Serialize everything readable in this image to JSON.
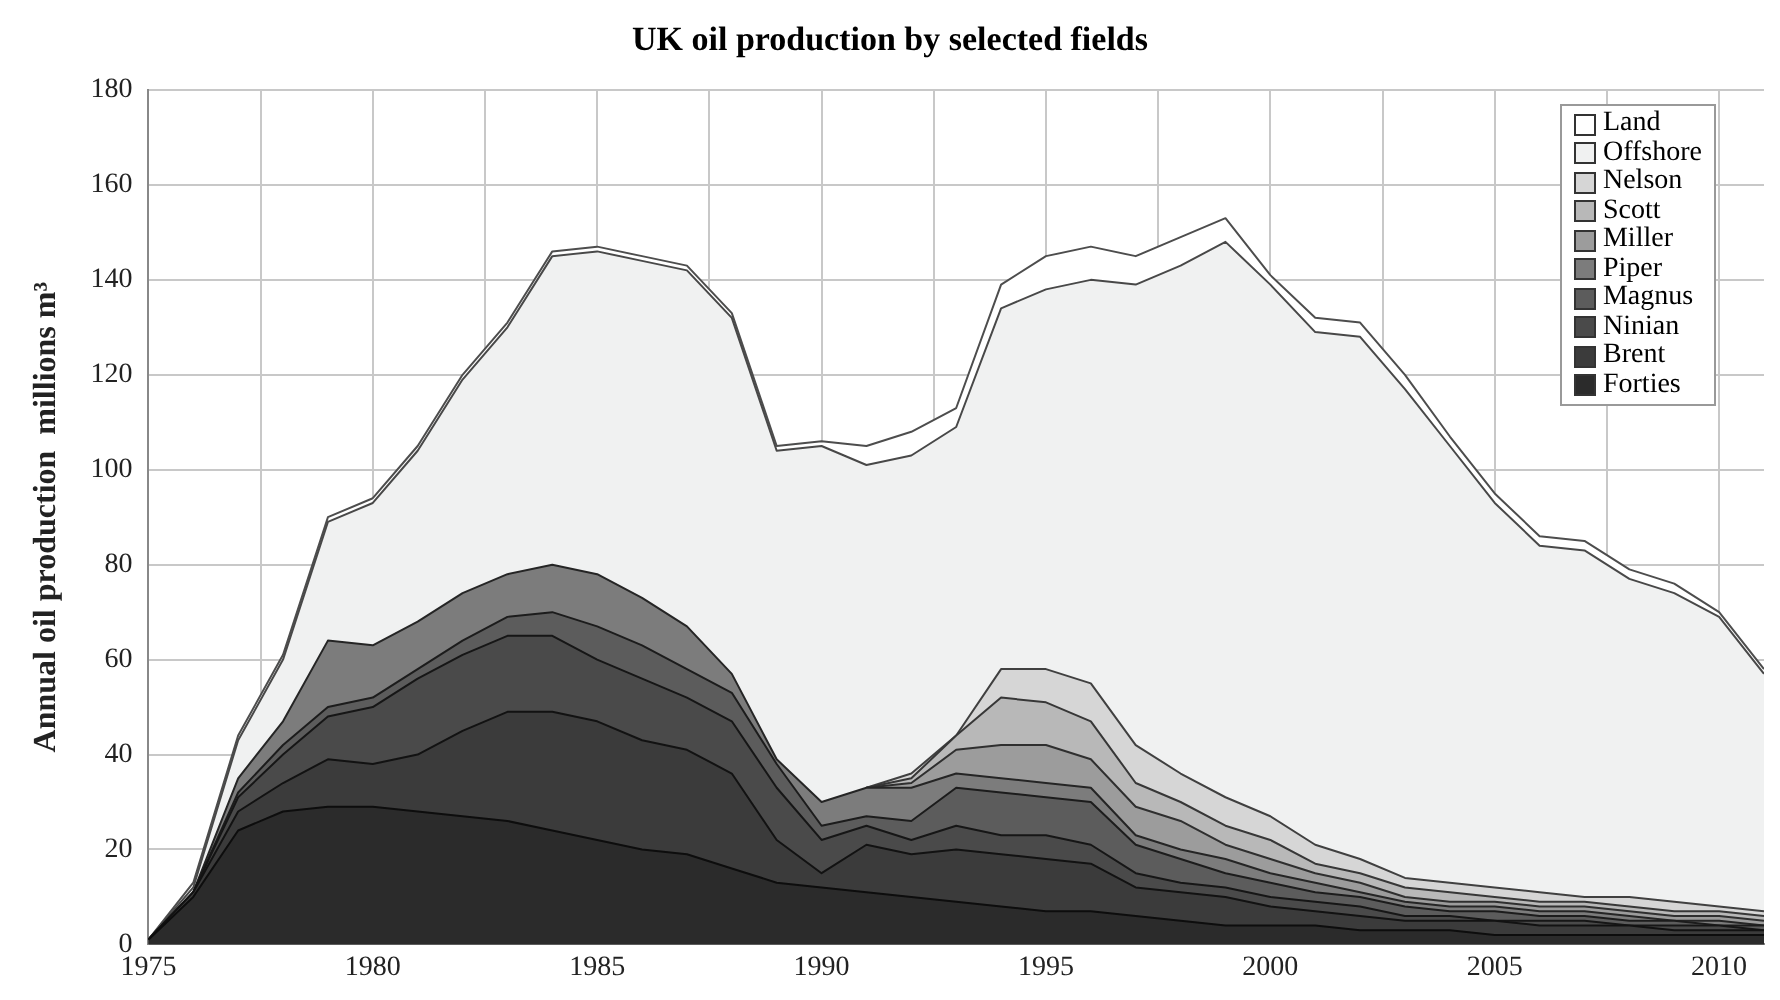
{
  "chart_data": {
    "type": "area",
    "stacked": true,
    "title": "UK oil production by selected fields",
    "ylabel": "Annual oil production  millions m³",
    "x": [
      1975,
      1976,
      1977,
      1978,
      1979,
      1980,
      1981,
      1982,
      1983,
      1984,
      1985,
      1986,
      1987,
      1988,
      1989,
      1990,
      1991,
      1992,
      1993,
      1994,
      1995,
      1996,
      1997,
      1998,
      1999,
      2000,
      2001,
      2002,
      2003,
      2004,
      2005,
      2006,
      2007,
      2008,
      2009,
      2010,
      2011
    ],
    "series": [
      {
        "name": "Forties",
        "color": "#2b2b2b",
        "values": [
          1,
          10,
          24,
          28,
          29,
          29,
          28,
          27,
          26,
          24,
          22,
          20,
          19,
          16,
          13,
          12,
          11,
          10,
          9,
          8,
          7,
          7,
          6,
          5,
          4,
          4,
          4,
          3,
          3,
          3,
          2,
          2,
          2,
          2,
          2,
          2,
          2
        ]
      },
      {
        "name": "Brent",
        "color": "#3b3b3b",
        "values": [
          0,
          1,
          4,
          6,
          10,
          9,
          12,
          18,
          23,
          25,
          25,
          23,
          22,
          20,
          9,
          3,
          10,
          9,
          11,
          11,
          11,
          10,
          6,
          6,
          6,
          4,
          3,
          3,
          2,
          2,
          3,
          2,
          2,
          2,
          1,
          1,
          1
        ]
      },
      {
        "name": "Ninian",
        "color": "#4a4a4a",
        "values": [
          0,
          0,
          3,
          6,
          9,
          12,
          16,
          16,
          16,
          16,
          13,
          13,
          11,
          11,
          11,
          7,
          4,
          3,
          5,
          4,
          5,
          4,
          3,
          2,
          2,
          2,
          2,
          2,
          1,
          1,
          0,
          1,
          1,
          0,
          1,
          1,
          0
        ]
      },
      {
        "name": "Magnus",
        "color": "#5c5c5c",
        "values": [
          0,
          0,
          1,
          2,
          2,
          2,
          2,
          3,
          4,
          5,
          7,
          7,
          6,
          6,
          5,
          3,
          2,
          4,
          8,
          9,
          8,
          9,
          6,
          5,
          3,
          3,
          2,
          2,
          2,
          1,
          2,
          1,
          1,
          1,
          1,
          0,
          1
        ]
      },
      {
        "name": "Piper",
        "color": "#7c7c7c",
        "values": [
          0,
          0,
          3,
          5,
          14,
          11,
          10,
          10,
          9,
          10,
          11,
          10,
          9,
          4,
          1,
          5,
          6,
          7,
          3,
          3,
          3,
          3,
          2,
          2,
          3,
          2,
          2,
          1,
          1,
          1,
          1,
          1,
          1,
          1,
          0,
          1,
          0
        ]
      },
      {
        "name": "Miller",
        "color": "#9c9c9c",
        "values": [
          null,
          null,
          null,
          null,
          null,
          null,
          null,
          null,
          null,
          null,
          null,
          null,
          null,
          null,
          null,
          null,
          0,
          1,
          5,
          7,
          8,
          6,
          6,
          6,
          3,
          3,
          2,
          2,
          1,
          1,
          1,
          1,
          1,
          1,
          1,
          1,
          1
        ]
      },
      {
        "name": "Scott",
        "color": "#b8b8b8",
        "values": [
          null,
          null,
          null,
          null,
          null,
          null,
          null,
          null,
          null,
          null,
          null,
          null,
          null,
          null,
          null,
          null,
          0,
          1,
          3,
          10,
          9,
          8,
          5,
          4,
          4,
          4,
          2,
          2,
          2,
          2,
          1,
          1,
          1,
          1,
          1,
          1,
          1
        ]
      },
      {
        "name": "Nelson",
        "color": "#d6d6d6",
        "values": [
          null,
          null,
          null,
          null,
          null,
          null,
          null,
          null,
          null,
          null,
          null,
          null,
          null,
          null,
          null,
          null,
          0,
          1,
          0,
          6,
          7,
          8,
          8,
          6,
          6,
          5,
          4,
          3,
          2,
          2,
          2,
          2,
          1,
          2,
          2,
          1,
          1
        ]
      },
      {
        "name": "Offshore",
        "color": "#f0f1f1",
        "values": [
          0,
          1,
          8,
          13,
          25,
          30,
          36,
          45,
          52,
          65,
          68,
          71,
          75,
          75,
          65,
          75,
          68,
          67,
          65,
          76,
          80,
          85,
          97,
          107,
          117,
          112,
          108,
          110,
          103,
          92,
          81,
          73,
          73,
          67,
          65,
          61,
          50
        ]
      },
      {
        "name": "Land",
        "color": "#ffffff",
        "values": [
          0,
          1,
          1,
          1,
          1,
          1,
          1,
          1,
          1,
          1,
          1,
          1,
          1,
          1,
          1,
          1,
          4,
          5,
          4,
          5,
          7,
          7,
          6,
          6,
          5,
          2,
          3,
          3,
          3,
          2,
          2,
          2,
          2,
          2,
          2,
          1,
          1
        ]
      }
    ],
    "xlim": [
      1975,
      2011
    ],
    "xticks": [
      1975,
      {
        "value": 1977.5,
        "label": null
      },
      1980,
      {
        "value": 1982.5,
        "label": null
      },
      1985,
      {
        "value": 1987.5,
        "label": null
      },
      1990,
      {
        "value": 1992.5,
        "label": null
      },
      1995,
      {
        "value": 1997.5,
        "label": null
      },
      2000,
      {
        "value": 2002.5,
        "label": null
      },
      2005,
      {
        "value": 2007.5,
        "label": null
      },
      2010
    ],
    "ylim": [
      0,
      180
    ],
    "yticks": [
      0,
      20,
      40,
      60,
      80,
      100,
      120,
      140,
      160,
      180
    ],
    "grid": true,
    "legend": "top right"
  }
}
